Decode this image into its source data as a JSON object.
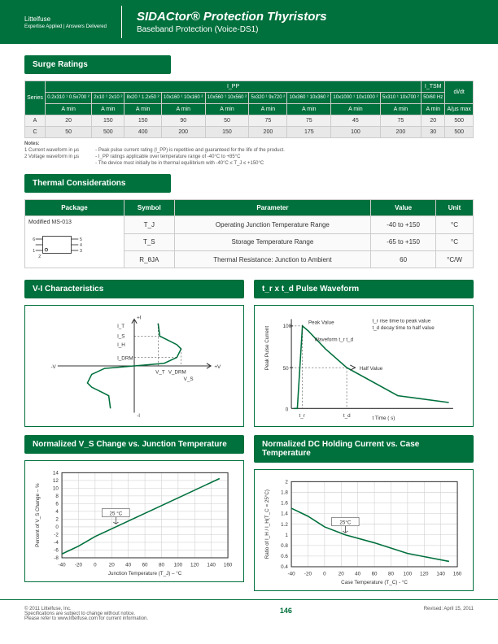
{
  "header": {
    "logo": "Littelfuse",
    "logo_tag": "Expertise Applied | Answers Delivered",
    "title": "SIDACtor® Protection Thyristors",
    "subtitle": "Baseband Protection  (Voice-DS1)"
  },
  "surge": {
    "section_title": "Surge Ratings",
    "top_header": "I_PP",
    "itsm_header": "I_TSM",
    "didt_header": "di/dt",
    "cols": [
      "0.2x310 ¹\n0.5x700 ²",
      "2x10 ¹\n2x10 ²",
      "8x20 ¹\n1.2x50 ²",
      "10x160 ¹\n10x160 ²",
      "10x560 ¹\n10x560 ²",
      "5x320 ¹\n9x720 ²",
      "10x360 ¹\n10x360 ²",
      "10x1000 ¹\n10x1000 ²",
      "5x310 ¹\n10x700 ²"
    ],
    "itsm_label": "50/60 Hz",
    "unit_row": [
      "A min",
      "A min",
      "A min",
      "A min",
      "A min",
      "A min",
      "A min",
      "A min",
      "A min",
      "A min",
      "A/µs max"
    ],
    "series_col": "Series",
    "rows": [
      {
        "series": "A",
        "vals": [
          "20",
          "150",
          "150",
          "90",
          "50",
          "75",
          "75",
          "45",
          "75",
          "20",
          "500"
        ]
      },
      {
        "series": "C",
        "vals": [
          "50",
          "500",
          "400",
          "200",
          "150",
          "200",
          "175",
          "100",
          "200",
          "30",
          "500"
        ]
      }
    ],
    "notes_label": "Notes:",
    "notes": [
      "1 Current waveform in µs",
      "2 Voltage waveform in µs",
      "- Peak pulse current rating (I_PP) is repetitive and guaranteed for the life of the product.",
      "- I_PP ratings applicable over temperature range of -40°C to +85°C",
      "- The device must initially be in thermal equilibrium with -40°C ≤ T_J ≤ +150°C"
    ]
  },
  "thermal": {
    "section_title": "Thermal Considerations",
    "headers": [
      "Package",
      "Symbol",
      "Parameter",
      "Value",
      "Unit"
    ],
    "package_name": "Modified MS-013",
    "rows": [
      {
        "sym": "T_J",
        "param": "Operating Junction Temperature Range",
        "val": "-40 to +150",
        "unit": "°C"
      },
      {
        "sym": "T_S",
        "param": "Storage Temperature Range",
        "val": "-65 to +150",
        "unit": "°C"
      },
      {
        "sym": "R_θJA",
        "param": "Thermal Resistance: Junction to Ambient",
        "val": "60",
        "unit": "°C/W"
      }
    ]
  },
  "charts": {
    "vi": {
      "title": "V-I Characteristics",
      "type": "line",
      "labels": [
        "I_T",
        "I_S",
        "I_H",
        "I_DRM",
        "+V",
        "-V",
        "+I",
        "-I",
        "V_T",
        "V_DRM",
        "V_S"
      ],
      "line_color": "#00703c",
      "bg": "#ffffff"
    },
    "pulse": {
      "title": "t_r x t_d Pulse Waveform",
      "type": "line",
      "xlabel": "t   Time ( s)",
      "ylabel": "Peak Pulse Current",
      "yticks": [
        0,
        50,
        100
      ],
      "x_markers": [
        "t_r",
        "t_d"
      ],
      "annotations": [
        "Peak Value",
        "Half Value",
        "t_r rise time to peak value",
        "t_d decay time to half value",
        "Waveform  t_r  t_d"
      ],
      "points": [
        [
          0,
          0
        ],
        [
          5,
          0
        ],
        [
          12,
          100
        ],
        [
          20,
          90
        ],
        [
          60,
          50
        ],
        [
          160,
          10
        ],
        [
          210,
          5
        ]
      ],
      "line_color": "#00703c",
      "bg": "#ffffff"
    },
    "vs_temp": {
      "title": "Normalized V_S Change vs. Junction Temperature",
      "type": "line",
      "xlabel": "Junction Temperature (T_J) – °C",
      "ylabel": "Percent of V_S Change – %",
      "xlim": [
        -40,
        160
      ],
      "xtick_step": 20,
      "ylim": [
        -8,
        14
      ],
      "ytick_step": 2,
      "ref_label": "25 °C",
      "points": [
        [
          -40,
          -7
        ],
        [
          -20,
          -5
        ],
        [
          0,
          -2.5
        ],
        [
          25,
          0
        ],
        [
          60,
          3.5
        ],
        [
          100,
          7.5
        ],
        [
          150,
          12.5
        ]
      ],
      "line_color": "#00703c",
      "grid_color": "#cccccc",
      "bg": "#ffffff"
    },
    "ih_temp": {
      "title": "Normalized DC Holding Current vs. Case Temperature",
      "type": "line",
      "xlabel": "Case Temperature (T_C) - °C",
      "ylabel": "Ratio of   I_H / I_H(T_C = 25°C)",
      "xlim": [
        -40,
        160
      ],
      "xtick_step": 20,
      "ylim": [
        0.4,
        2.0
      ],
      "ytick_step": 0.2,
      "ref_label": "25°C",
      "points": [
        [
          -40,
          1.5
        ],
        [
          -20,
          1.35
        ],
        [
          0,
          1.15
        ],
        [
          25,
          1.0
        ],
        [
          60,
          0.85
        ],
        [
          100,
          0.65
        ],
        [
          150,
          0.5
        ]
      ],
      "line_color": "#00703c",
      "grid_color": "#cccccc",
      "bg": "#ffffff"
    }
  },
  "footer": {
    "left": "© 2011 Littelfuse, Inc.\nSpecifications are subject to change without notice.\nPlease refer to www.littelfuse.com for current information.",
    "page": "146",
    "right": "Revised: April 15, 2011"
  },
  "colors": {
    "brand": "#00703c",
    "grid": "#cccccc",
    "text": "#333333",
    "bg": "#ffffff"
  }
}
